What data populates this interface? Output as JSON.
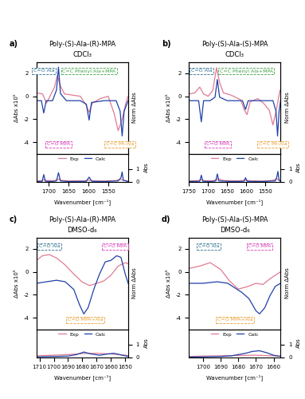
{
  "chart_data": [
    {
      "type": "line",
      "panel": "a)",
      "title": "Poly-(S)-Ala-(R)-MPA",
      "subtitle": "CDCl₃",
      "x_label": "Wavenumber [cm⁻¹]",
      "y_label": "ΔAbs x10⁵",
      "y2_label": "Norm ΔAbs",
      "abs_label": "Abs",
      "xlim": [
        1730,
        1500
      ],
      "xticks": [
        1700,
        1650,
        1600,
        1550
      ],
      "ylim": [
        -5,
        3
      ],
      "yticks": [
        2,
        0,
        -2,
        -4
      ],
      "y2lim": [
        -1.5,
        1.1
      ],
      "y2ticks": [],
      "abs_ylim": [
        0,
        2.2
      ],
      "abs_yticks": [
        0,
        1
      ],
      "legend": "upper center",
      "series": [
        {
          "name": "Exp",
          "color": "#e07b91",
          "x": [
            1730,
            1715,
            1705,
            1695,
            1685,
            1678,
            1670,
            1660,
            1640,
            1620,
            1605,
            1598,
            1590,
            1570,
            1550,
            1535,
            1525,
            1515,
            1505,
            1500
          ],
          "values": [
            0.3,
            0.2,
            -0.6,
            0.1,
            0.8,
            1.8,
            0.9,
            0.2,
            0.1,
            0.0,
            -0.8,
            -1.4,
            -0.6,
            -0.2,
            0.0,
            -1.5,
            -3.0,
            -2.0,
            -0.5,
            0.0
          ]
        },
        {
          "name": "Calc",
          "color": "#1f40a8",
          "axis": "y2",
          "x": [
            1730,
            1718,
            1712,
            1706,
            1690,
            1680,
            1675,
            1670,
            1655,
            1620,
            1605,
            1598,
            1592,
            1560,
            1530,
            1520,
            1515,
            1510,
            1500
          ],
          "values": [
            0,
            0,
            -0.35,
            0,
            0,
            0.3,
            0.95,
            0.2,
            0,
            0,
            -0.1,
            -0.55,
            -0.05,
            0,
            0,
            -0.3,
            -1.0,
            -0.3,
            0
          ]
        }
      ],
      "abs_series": [
        {
          "name": "Exp",
          "color": "#e07b91",
          "x": [
            1730,
            1715,
            1710,
            1705,
            1690,
            1680,
            1675,
            1670,
            1650,
            1610,
            1600,
            1590,
            1560,
            1530,
            1520,
            1510,
            1500
          ],
          "values": [
            0.05,
            0.08,
            0.15,
            0.08,
            0.06,
            0.12,
            0.2,
            0.1,
            0.05,
            0.05,
            0.12,
            0.05,
            0.04,
            0.08,
            0.18,
            0.08,
            0.05
          ]
        },
        {
          "name": "Calc",
          "color": "#1f40a8",
          "x": [
            1730,
            1716,
            1712,
            1708,
            1690,
            1680,
            1675,
            1670,
            1650,
            1605,
            1598,
            1591,
            1560,
            1525,
            1518,
            1515,
            1512,
            1500
          ],
          "values": [
            0,
            0.02,
            0.55,
            0.02,
            0,
            0.05,
            0.7,
            0.05,
            0,
            0.02,
            0.35,
            0.02,
            0,
            0.05,
            0.3,
            0.75,
            0.1,
            0
          ]
        }
      ],
      "annotations": [
        {
          "text": "C=O Ala",
          "x": 1712,
          "color": "#2b6e8f"
        },
        {
          "text": "C=O MPA",
          "x": 1675,
          "color": "#d63ab5"
        },
        {
          "text": "C=C Phenyl Ala+MPA",
          "x": 1598,
          "color": "#3f9f45"
        },
        {
          "text": "C=C Ph-Ala",
          "x": 1520,
          "color": "#e8a030"
        }
      ]
    },
    {
      "type": "line",
      "panel": "b)",
      "title": "Poly-(S)-Ala-(S)-MPA",
      "subtitle": "CDCl₃",
      "x_label": "Wavenumber [cm⁻¹]",
      "y_label": "ΔAbs x10⁵",
      "y2_label": "Norm ΔAbs",
      "abs_label": "Abs",
      "xlim": [
        1750,
        1510
      ],
      "xticks": [
        1750,
        1700,
        1650,
        1600,
        1550
      ],
      "ylim": [
        -5,
        3
      ],
      "yticks": [
        2,
        0,
        -2,
        -4
      ],
      "y2lim": [
        -1.5,
        1.1
      ],
      "y2ticks": [],
      "abs_ylim": [
        0,
        2.2
      ],
      "abs_yticks": [
        0,
        1
      ],
      "legend": "upper center",
      "series": [
        {
          "name": "Exp",
          "color": "#e07b91",
          "x": [
            1750,
            1735,
            1722,
            1712,
            1700,
            1688,
            1678,
            1670,
            1660,
            1640,
            1615,
            1605,
            1598,
            1590,
            1570,
            1555,
            1540,
            1530,
            1520,
            1512
          ],
          "values": [
            0.2,
            0.3,
            0.8,
            0.2,
            0.0,
            0.5,
            2.5,
            1.2,
            0.3,
            0.1,
            -0.3,
            -1.2,
            -1.6,
            -0.5,
            -0.2,
            -0.6,
            -1.2,
            -2.5,
            -1.0,
            0.5
          ]
        },
        {
          "name": "Calc",
          "color": "#1f40a8",
          "axis": "y2",
          "x": [
            1750,
            1725,
            1718,
            1712,
            1695,
            1682,
            1676,
            1670,
            1650,
            1610,
            1602,
            1595,
            1570,
            1530,
            1522,
            1518,
            1514,
            1510
          ],
          "values": [
            0,
            0,
            -0.6,
            0,
            0,
            0.1,
            0.6,
            0.1,
            0,
            0,
            -0.25,
            0,
            0,
            0,
            -0.3,
            -1.0,
            -0.3,
            0
          ]
        }
      ],
      "abs_series": [
        {
          "name": "Exp",
          "color": "#e07b91",
          "x": [
            1750,
            1725,
            1718,
            1710,
            1690,
            1678,
            1672,
            1660,
            1620,
            1602,
            1590,
            1550,
            1530,
            1520,
            1510
          ],
          "values": [
            0.05,
            0.08,
            0.15,
            0.07,
            0.05,
            0.15,
            0.22,
            0.08,
            0.05,
            0.12,
            0.05,
            0.04,
            0.1,
            0.2,
            0.08
          ]
        },
        {
          "name": "Calc",
          "color": "#1f40a8",
          "x": [
            1750,
            1722,
            1718,
            1714,
            1690,
            1680,
            1676,
            1672,
            1640,
            1606,
            1602,
            1598,
            1560,
            1524,
            1520,
            1517,
            1514,
            1510
          ],
          "values": [
            0,
            0.02,
            0.5,
            0.02,
            0,
            0.05,
            0.6,
            0.05,
            0,
            0.02,
            0.3,
            0.02,
            0,
            0.05,
            0.35,
            0.8,
            0.1,
            0
          ]
        }
      ],
      "annotations": [
        {
          "text": "C=O Ala",
          "x": 1718,
          "color": "#2b6e8f"
        },
        {
          "text": "C=O MPA",
          "x": 1675,
          "color": "#d63ab5"
        },
        {
          "text": "C=C Phenyl Ala+MPA",
          "x": 1600,
          "color": "#3f9f45"
        },
        {
          "text": "C=C Ph-Ala",
          "x": 1530,
          "color": "#e8a030"
        }
      ]
    },
    {
      "type": "line",
      "panel": "c)",
      "title": "Poly-(S)-Ala-(R)-MPA",
      "subtitle": "DMSO-d₆",
      "x_label": "Wavenumber [cm⁻¹]",
      "y_label": "ΔAbs x10⁵",
      "y2_label": "Norm ΔAbs",
      "abs_label": "Abs",
      "xlim": [
        1712,
        1648
      ],
      "xticks": [
        1710,
        1700,
        1690,
        1680,
        1670,
        1660,
        1650
      ],
      "ylim": [
        -5,
        3
      ],
      "yticks": [
        2,
        0,
        -2,
        -4
      ],
      "y2lim": [
        -1.5,
        1.5
      ],
      "y2ticks": [],
      "abs_ylim": [
        0,
        2.2
      ],
      "abs_yticks": [
        0,
        1
      ],
      "legend": "upper center",
      "series": [
        {
          "name": "Exp",
          "color": "#e07b91",
          "x": [
            1712,
            1708,
            1703,
            1698,
            1692,
            1686,
            1680,
            1675,
            1670,
            1665,
            1660,
            1655,
            1650,
            1648
          ],
          "values": [
            1.0,
            1.4,
            1.5,
            1.2,
            0.6,
            -0.2,
            -0.9,
            -1.2,
            -1.0,
            -0.8,
            -0.3,
            0.5,
            0.8,
            0.7
          ]
        },
        {
          "name": "Calc",
          "color": "#1f40a8",
          "axis": "y2",
          "x": [
            1712,
            1705,
            1698,
            1692,
            1686,
            1682,
            1679,
            1676,
            1672,
            1668,
            1664,
            1660,
            1656,
            1653,
            1650,
            1648
          ],
          "values": [
            0,
            0.05,
            0.1,
            0.05,
            -0.2,
            -0.7,
            -1.0,
            -0.8,
            -0.2,
            0.3,
            0.7,
            0.75,
            0.9,
            0.85,
            0.3,
            0
          ]
        }
      ],
      "abs_series": [
        {
          "name": "Exp",
          "color": "#e07b91",
          "x": [
            1712,
            1700,
            1690,
            1680,
            1670,
            1660,
            1650,
            1648
          ],
          "values": [
            0.1,
            0.15,
            0.2,
            0.28,
            0.3,
            0.25,
            0.15,
            0.12
          ]
        },
        {
          "name": "Calc",
          "color": "#1f40a8",
          "x": [
            1712,
            1700,
            1690,
            1684,
            1679,
            1674,
            1668,
            1662,
            1658,
            1654,
            1648
          ],
          "values": [
            0.02,
            0.05,
            0.08,
            0.2,
            0.4,
            0.25,
            0.15,
            0.25,
            0.3,
            0.2,
            0.05
          ]
        }
      ],
      "annotations": [
        {
          "text": "C=O Ala",
          "x": 1703,
          "color": "#2b6e8f"
        },
        {
          "text": "C=O MPA+Ala",
          "x": 1678,
          "color": "#e8a030"
        },
        {
          "text": "C=O MPA",
          "x": 1657,
          "color": "#d63ab5"
        }
      ]
    },
    {
      "type": "line",
      "panel": "d)",
      "title": "Poly-(S)-Ala-(S)-MPA",
      "subtitle": "DMSO-d₆",
      "x_label": "Wavenumber [cm⁻¹]",
      "y_label": "ΔAbs x10⁵",
      "y2_label": "Norm ΔAbs",
      "abs_label": "Abs",
      "xlim": [
        1708,
        1656
      ],
      "xticks": [
        1700,
        1690,
        1680,
        1670,
        1660
      ],
      "ylim": [
        -5,
        3
      ],
      "yticks": [
        2,
        0,
        -2,
        -4
      ],
      "y2lim": [
        -1.5,
        1.5
      ],
      "y2ticks": [],
      "abs_ylim": [
        0,
        2.2
      ],
      "abs_yticks": [
        0,
        1
      ],
      "legend": "upper center",
      "series": [
        {
          "name": "Exp",
          "color": "#e07b91",
          "x": [
            1708,
            1702,
            1696,
            1690,
            1685,
            1680,
            1675,
            1670,
            1666,
            1662,
            1658,
            1656
          ],
          "values": [
            0.3,
            0.5,
            0.8,
            0.2,
            -0.8,
            -1.5,
            -1.3,
            -1.0,
            -1.1,
            -0.6,
            -0.2,
            0.0
          ]
        },
        {
          "name": "Calc",
          "color": "#1f40a8",
          "axis": "y2",
          "x": [
            1708,
            1700,
            1692,
            1686,
            1682,
            1678,
            1674,
            1670,
            1668,
            1665,
            1662,
            1659,
            1656
          ],
          "values": [
            0,
            0,
            0.05,
            0,
            -0.15,
            -0.3,
            -0.5,
            -0.9,
            -1.0,
            -0.8,
            -0.4,
            -0.1,
            0
          ]
        }
      ],
      "abs_series": [
        {
          "name": "Exp",
          "color": "#e07b91",
          "x": [
            1708,
            1700,
            1690,
            1680,
            1670,
            1660,
            1656
          ],
          "values": [
            0.05,
            0.08,
            0.1,
            0.13,
            0.15,
            0.1,
            0.08
          ]
        },
        {
          "name": "Calc",
          "color": "#1f40a8",
          "x": [
            1708,
            1700,
            1690,
            1684,
            1680,
            1676,
            1672,
            1668,
            1664,
            1660,
            1656
          ],
          "values": [
            0,
            0.02,
            0.05,
            0.1,
            0.2,
            0.3,
            0.45,
            0.5,
            0.35,
            0.15,
            0.05
          ]
        }
      ],
      "annotations": [
        {
          "text": "C=O Ala",
          "x": 1697,
          "color": "#2b6e8f"
        },
        {
          "text": "C=O MPA+Ala",
          "x": 1682,
          "color": "#e8a030"
        },
        {
          "text": "C=O MPA",
          "x": 1668,
          "color": "#d63ab5"
        }
      ]
    }
  ]
}
